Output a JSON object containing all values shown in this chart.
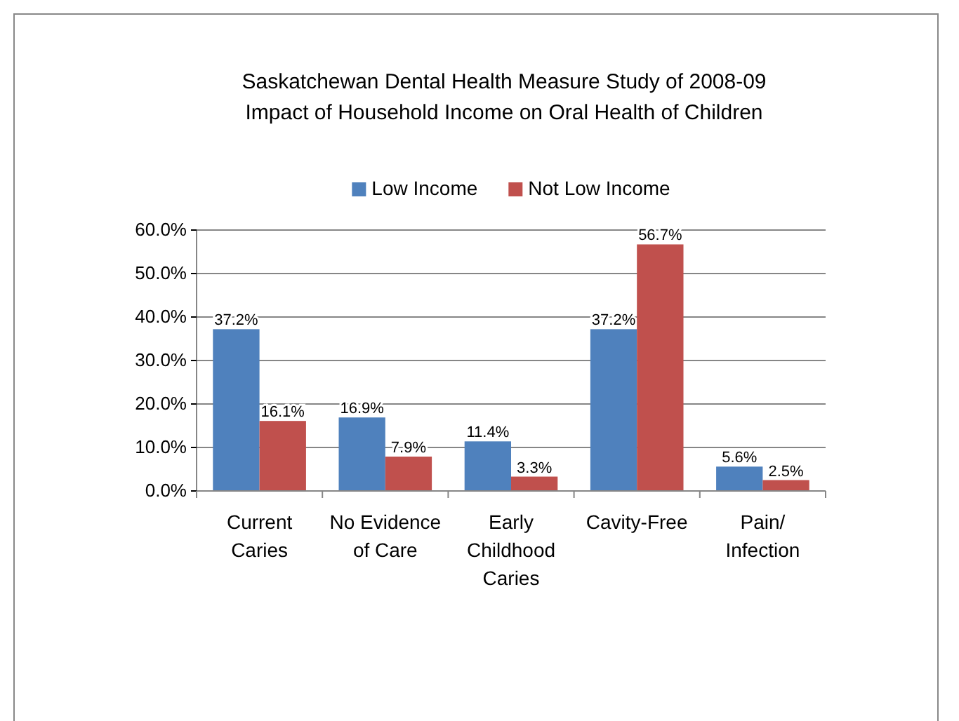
{
  "chart_data": {
    "type": "bar",
    "title": "Saskatchewan Dental Health Measure Study of 2008-09\nImpact of Household Income on Oral Health of Children",
    "categories": [
      "Current Caries",
      "No Evidence of Care",
      "Early Childhood Caries",
      "Cavity-Free",
      "Pain/ Infection"
    ],
    "series": [
      {
        "name": "Low Income",
        "color": "#4f81bd",
        "values": [
          37.2,
          16.9,
          11.4,
          37.2,
          5.6
        ],
        "value_labels": [
          "37.2%",
          "16.9%",
          "11.4%",
          "37.2%",
          "5.6%"
        ]
      },
      {
        "name": "Not Low Income",
        "color": "#c0504d",
        "values": [
          16.1,
          7.9,
          3.3,
          56.7,
          2.5
        ],
        "value_labels": [
          "16.1%",
          "7.9%",
          "3.3%",
          "56.7%",
          "2.5%"
        ]
      }
    ],
    "ylim": [
      0,
      60
    ],
    "yticks": [
      {
        "value": 0,
        "label": "0.0%"
      },
      {
        "value": 10,
        "label": "10.0%"
      },
      {
        "value": 20,
        "label": "20.0%"
      },
      {
        "value": 30,
        "label": "30.0%"
      },
      {
        "value": 40,
        "label": "40.0%"
      },
      {
        "value": 50,
        "label": "50.0%"
      },
      {
        "value": 60,
        "label": "60.0%"
      }
    ],
    "grid": "y",
    "legend": "top"
  }
}
